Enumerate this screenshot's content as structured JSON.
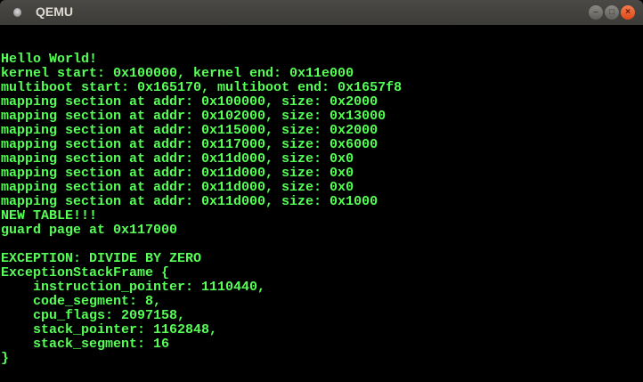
{
  "window": {
    "title": "QEMU",
    "colors": {
      "text": "#55ff55",
      "background": "#000000"
    }
  },
  "console": {
    "lines": [
      "Hello World!",
      "kernel start: 0x100000, kernel end: 0x11e000",
      "multiboot start: 0x165170, multiboot end: 0x1657f8",
      "mapping section at addr: 0x100000, size: 0x2000",
      "mapping section at addr: 0x102000, size: 0x13000",
      "mapping section at addr: 0x115000, size: 0x2000",
      "mapping section at addr: 0x117000, size: 0x6000",
      "mapping section at addr: 0x11d000, size: 0x0",
      "mapping section at addr: 0x11d000, size: 0x0",
      "mapping section at addr: 0x11d000, size: 0x0",
      "mapping section at addr: 0x11d000, size: 0x1000",
      "NEW TABLE!!!",
      "guard page at 0x117000",
      "",
      "EXCEPTION: DIVIDE BY ZERO",
      "ExceptionStackFrame {",
      "    instruction_pointer: 1110440,",
      "    code_segment: 8,",
      "    cpu_flags: 2097158,",
      "    stack_pointer: 1162848,",
      "    stack_segment: 16",
      "}"
    ]
  }
}
